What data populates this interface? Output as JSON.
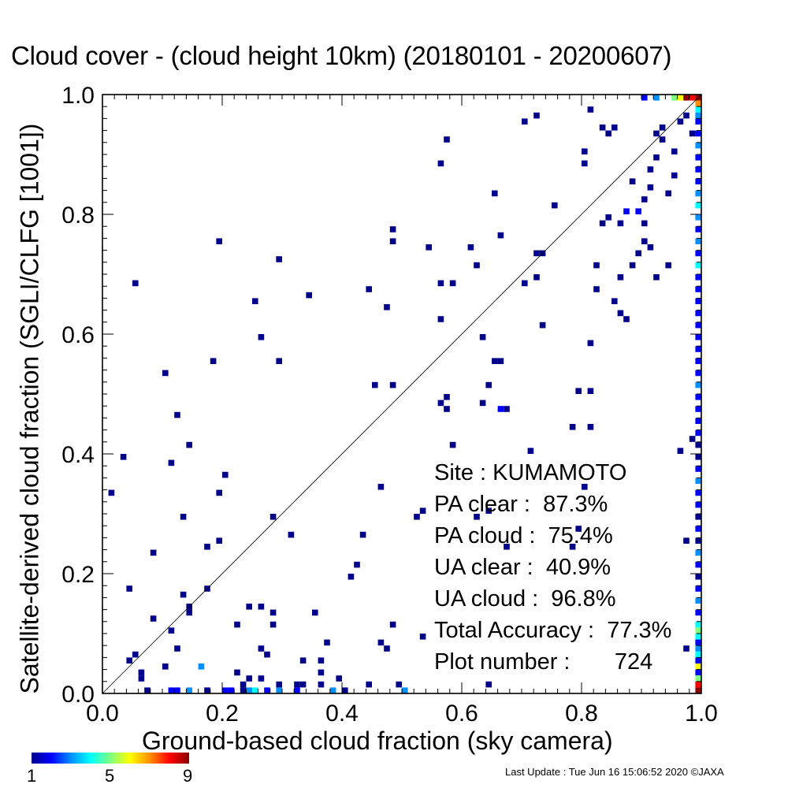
{
  "header": {
    "title": "Cloud cover - (cloud height 10km)  (20180101 - 20200607)"
  },
  "stats": {
    "site": "Site : KUMAMOTO",
    "pa_clear": "PA clear :  87.3%",
    "pa_cloud": "PA cloud :  75.4%",
    "ua_clear": "UA clear :  40.9%",
    "ua_cloud": "UA cloud :  96.8%",
    "total_accuracy": "Total Accuracy :  77.3%",
    "plot_number": "Plot number :       724"
  },
  "colorbar": {
    "tick_labels": [
      "1",
      "5",
      "9"
    ],
    "colors": [
      "#00008b",
      "#0000ff",
      "#0090ff",
      "#00ffff",
      "#80ff80",
      "#ffff00",
      "#ff9000",
      "#ff0000",
      "#8b0000"
    ]
  },
  "footer": {
    "update": "Last Update : Tue Jun 16 15:06:52 2020  ©JAXA"
  },
  "chart_data": {
    "type": "heatmap",
    "title": "Cloud cover - (cloud height 10km)  (20180101 - 20200607)",
    "xlabel": "Ground-based cloud fraction (sky camera)",
    "ylabel": "Satellite-derived cloud fraction (SGLI/CLFG [1001])",
    "xlim": [
      0,
      1
    ],
    "ylim": [
      0,
      1
    ],
    "x_ticks": [
      "0.0",
      "0.2",
      "0.4",
      "0.6",
      "0.8",
      "1.0"
    ],
    "y_ticks": [
      "0.0",
      "0.2",
      "0.4",
      "0.6",
      "0.8",
      "1.0"
    ],
    "bin_size": 0.01,
    "diagonal_line": true,
    "grid": false,
    "colorbar_range": [
      1,
      9
    ],
    "cells": [
      [
        0.01,
        0.33,
        1
      ],
      [
        0.03,
        0.39,
        1
      ],
      [
        0.04,
        0.17,
        1
      ],
      [
        0.04,
        0.05,
        1
      ],
      [
        0.05,
        0.06,
        1
      ],
      [
        0.05,
        0.68,
        1
      ],
      [
        0.06,
        0.02,
        1
      ],
      [
        0.06,
        0.03,
        1
      ],
      [
        0.07,
        0.0,
        1
      ],
      [
        0.08,
        0.23,
        1
      ],
      [
        0.08,
        0.12,
        1
      ],
      [
        0.1,
        0.53,
        1
      ],
      [
        0.1,
        0.04,
        1
      ],
      [
        0.11,
        0.38,
        1
      ],
      [
        0.11,
        0.1,
        1
      ],
      [
        0.11,
        0.0,
        2
      ],
      [
        0.12,
        0.46,
        1
      ],
      [
        0.12,
        0.07,
        1
      ],
      [
        0.12,
        0.0,
        2
      ],
      [
        0.13,
        0.29,
        1
      ],
      [
        0.13,
        0.16,
        1
      ],
      [
        0.14,
        0.41,
        1
      ],
      [
        0.14,
        0.14,
        1
      ],
      [
        0.14,
        0.13,
        1
      ],
      [
        0.14,
        0.0,
        3
      ],
      [
        0.16,
        0.04,
        3
      ],
      [
        0.17,
        0.24,
        1
      ],
      [
        0.17,
        0.17,
        1
      ],
      [
        0.17,
        0.0,
        1
      ],
      [
        0.18,
        0.55,
        1
      ],
      [
        0.19,
        0.75,
        1
      ],
      [
        0.19,
        0.33,
        1
      ],
      [
        0.19,
        0.25,
        1
      ],
      [
        0.2,
        0.36,
        1
      ],
      [
        0.2,
        0.0,
        2
      ],
      [
        0.21,
        0.0,
        2
      ],
      [
        0.22,
        0.11,
        1
      ],
      [
        0.22,
        0.03,
        1
      ],
      [
        0.23,
        0.01,
        1
      ],
      [
        0.23,
        0.0,
        1
      ],
      [
        0.24,
        0.14,
        1
      ],
      [
        0.24,
        0.02,
        1
      ],
      [
        0.24,
        0.0,
        3
      ],
      [
        0.25,
        0.65,
        1
      ],
      [
        0.25,
        0.0,
        4
      ],
      [
        0.26,
        0.59,
        1
      ],
      [
        0.26,
        0.14,
        1
      ],
      [
        0.26,
        0.07,
        1
      ],
      [
        0.26,
        0.02,
        1
      ],
      [
        0.27,
        0.06,
        1
      ],
      [
        0.27,
        0.0,
        2
      ],
      [
        0.28,
        0.29,
        1
      ],
      [
        0.28,
        0.13,
        1
      ],
      [
        0.28,
        0.11,
        1
      ],
      [
        0.29,
        0.72,
        1
      ],
      [
        0.29,
        0.55,
        1
      ],
      [
        0.29,
        0.01,
        1
      ],
      [
        0.29,
        0.0,
        3
      ],
      [
        0.31,
        0.26,
        1
      ],
      [
        0.32,
        0.01,
        1
      ],
      [
        0.32,
        0.0,
        2
      ],
      [
        0.33,
        0.05,
        1
      ],
      [
        0.33,
        0.01,
        1
      ],
      [
        0.34,
        0.66,
        1
      ],
      [
        0.35,
        0.13,
        1
      ],
      [
        0.36,
        0.05,
        1
      ],
      [
        0.36,
        0.03,
        1
      ],
      [
        0.36,
        0.01,
        1
      ],
      [
        0.37,
        0.08,
        1
      ],
      [
        0.38,
        0.0,
        3
      ],
      [
        0.39,
        0.02,
        1
      ],
      [
        0.4,
        0.0,
        1
      ],
      [
        0.41,
        0.19,
        1
      ],
      [
        0.42,
        0.21,
        1
      ],
      [
        0.43,
        0.26,
        1
      ],
      [
        0.44,
        0.67,
        1
      ],
      [
        0.44,
        0.01,
        1
      ],
      [
        0.45,
        0.51,
        1
      ],
      [
        0.46,
        0.34,
        1
      ],
      [
        0.46,
        0.08,
        1
      ],
      [
        0.47,
        0.64,
        1
      ],
      [
        0.47,
        0.07,
        1
      ],
      [
        0.48,
        0.77,
        1
      ],
      [
        0.48,
        0.75,
        1
      ],
      [
        0.48,
        0.51,
        1
      ],
      [
        0.48,
        0.11,
        1
      ],
      [
        0.49,
        0.01,
        1
      ],
      [
        0.5,
        0.0,
        3
      ],
      [
        0.52,
        0.29,
        1
      ],
      [
        0.53,
        0.3,
        1
      ],
      [
        0.53,
        0.09,
        1
      ],
      [
        0.54,
        0.74,
        1
      ],
      [
        0.56,
        0.88,
        1
      ],
      [
        0.56,
        0.68,
        1
      ],
      [
        0.56,
        0.62,
        1
      ],
      [
        0.56,
        0.48,
        1
      ],
      [
        0.57,
        0.92,
        1
      ],
      [
        0.57,
        0.49,
        1
      ],
      [
        0.57,
        0.47,
        1
      ],
      [
        0.58,
        0.68,
        1
      ],
      [
        0.58,
        0.41,
        1
      ],
      [
        0.61,
        0.74,
        1
      ],
      [
        0.62,
        0.71,
        1
      ],
      [
        0.62,
        0.29,
        1
      ],
      [
        0.63,
        0.59,
        1
      ],
      [
        0.63,
        0.48,
        1
      ],
      [
        0.64,
        0.51,
        1
      ],
      [
        0.64,
        0.3,
        1
      ],
      [
        0.64,
        0.01,
        1
      ],
      [
        0.65,
        0.83,
        1
      ],
      [
        0.65,
        0.55,
        1
      ],
      [
        0.66,
        0.76,
        1
      ],
      [
        0.66,
        0.55,
        1
      ],
      [
        0.66,
        0.47,
        2
      ],
      [
        0.67,
        0.47,
        1
      ],
      [
        0.67,
        0.24,
        1
      ],
      [
        0.7,
        0.95,
        1
      ],
      [
        0.7,
        0.68,
        1
      ],
      [
        0.71,
        0.4,
        1
      ],
      [
        0.72,
        0.96,
        1
      ],
      [
        0.72,
        0.73,
        1
      ],
      [
        0.72,
        0.69,
        1
      ],
      [
        0.73,
        0.73,
        1
      ],
      [
        0.73,
        0.61,
        1
      ],
      [
        0.75,
        0.81,
        1
      ],
      [
        0.78,
        0.44,
        1
      ],
      [
        0.78,
        0.24,
        1
      ],
      [
        0.79,
        0.5,
        1
      ],
      [
        0.79,
        0.27,
        1
      ],
      [
        0.8,
        0.9,
        1
      ],
      [
        0.8,
        0.88,
        1
      ],
      [
        0.8,
        0.34,
        1
      ],
      [
        0.81,
        0.97,
        1
      ],
      [
        0.81,
        0.5,
        1
      ],
      [
        0.81,
        0.44,
        1
      ],
      [
        0.81,
        0.58,
        1
      ],
      [
        0.82,
        0.71,
        1
      ],
      [
        0.82,
        0.67,
        1
      ],
      [
        0.83,
        0.94,
        1
      ],
      [
        0.83,
        0.78,
        1
      ],
      [
        0.84,
        0.93,
        1
      ],
      [
        0.84,
        0.79,
        1
      ],
      [
        0.85,
        0.94,
        1
      ],
      [
        0.85,
        0.65,
        1
      ],
      [
        0.86,
        0.63,
        1
      ],
      [
        0.86,
        0.69,
        1
      ],
      [
        0.86,
        0.78,
        1
      ],
      [
        0.87,
        0.62,
        1
      ],
      [
        0.87,
        0.8,
        2
      ],
      [
        0.88,
        0.85,
        1
      ],
      [
        0.88,
        0.71,
        1
      ],
      [
        0.89,
        0.73,
        1
      ],
      [
        0.89,
        0.8,
        2
      ],
      [
        0.9,
        0.82,
        1
      ],
      [
        0.9,
        0.78,
        1
      ],
      [
        0.9,
        0.75,
        1
      ],
      [
        0.91,
        0.87,
        1
      ],
      [
        0.91,
        0.84,
        1
      ],
      [
        0.91,
        0.74,
        1
      ],
      [
        0.92,
        0.93,
        1
      ],
      [
        0.92,
        0.89,
        1
      ],
      [
        0.92,
        0.69,
        1
      ],
      [
        0.93,
        0.94,
        1
      ],
      [
        0.93,
        0.92,
        1
      ],
      [
        0.94,
        0.83,
        1
      ],
      [
        0.94,
        0.71,
        1
      ],
      [
        0.95,
        0.86,
        1
      ],
      [
        0.95,
        0.9,
        1
      ],
      [
        0.96,
        0.95,
        1
      ],
      [
        0.96,
        0.4,
        1
      ],
      [
        0.97,
        0.96,
        1
      ],
      [
        0.97,
        0.25,
        1
      ],
      [
        0.97,
        0.07,
        1
      ],
      [
        0.98,
        0.93,
        1
      ],
      [
        0.98,
        0.42,
        1
      ],
      [
        0.9,
        0.99,
        2
      ],
      [
        0.92,
        0.99,
        3
      ],
      [
        0.95,
        0.99,
        5
      ],
      [
        0.96,
        0.99,
        6
      ],
      [
        0.97,
        0.99,
        9
      ],
      [
        0.98,
        0.99,
        8
      ],
      [
        0.99,
        0.99,
        9
      ],
      [
        0.99,
        0.98,
        7
      ],
      [
        0.99,
        0.97,
        4
      ],
      [
        0.99,
        0.96,
        3
      ],
      [
        0.99,
        0.95,
        2
      ],
      [
        0.99,
        0.93,
        2
      ],
      [
        0.99,
        0.91,
        3
      ],
      [
        0.99,
        0.89,
        2
      ],
      [
        0.99,
        0.87,
        2
      ],
      [
        0.99,
        0.85,
        2
      ],
      [
        0.99,
        0.83,
        3
      ],
      [
        0.99,
        0.81,
        4
      ],
      [
        0.99,
        0.79,
        3
      ],
      [
        0.99,
        0.77,
        2
      ],
      [
        0.99,
        0.75,
        3
      ],
      [
        0.99,
        0.73,
        2
      ],
      [
        0.99,
        0.71,
        4
      ],
      [
        0.99,
        0.69,
        2
      ],
      [
        0.99,
        0.67,
        2
      ],
      [
        0.99,
        0.65,
        2
      ],
      [
        0.99,
        0.63,
        2
      ],
      [
        0.99,
        0.61,
        2
      ],
      [
        0.99,
        0.59,
        2
      ],
      [
        0.99,
        0.57,
        2
      ],
      [
        0.99,
        0.55,
        2
      ],
      [
        0.99,
        0.53,
        2
      ],
      [
        0.99,
        0.51,
        3
      ],
      [
        0.99,
        0.49,
        2
      ],
      [
        0.99,
        0.47,
        2
      ],
      [
        0.99,
        0.45,
        2
      ],
      [
        0.99,
        0.43,
        2
      ],
      [
        0.99,
        0.41,
        1
      ],
      [
        0.99,
        0.39,
        1
      ],
      [
        0.99,
        0.37,
        2
      ],
      [
        0.99,
        0.35,
        3
      ],
      [
        0.99,
        0.33,
        2
      ],
      [
        0.99,
        0.31,
        2
      ],
      [
        0.99,
        0.29,
        1
      ],
      [
        0.99,
        0.27,
        2
      ],
      [
        0.99,
        0.25,
        1
      ],
      [
        0.99,
        0.23,
        3
      ],
      [
        0.99,
        0.21,
        2
      ],
      [
        0.99,
        0.19,
        1
      ],
      [
        0.99,
        0.17,
        2
      ],
      [
        0.99,
        0.15,
        3
      ],
      [
        0.99,
        0.13,
        2
      ],
      [
        0.99,
        0.11,
        4
      ],
      [
        0.99,
        0.1,
        5
      ],
      [
        0.99,
        0.09,
        4
      ],
      [
        0.99,
        0.08,
        2
      ],
      [
        0.99,
        0.07,
        3
      ],
      [
        0.99,
        0.06,
        4
      ],
      [
        0.99,
        0.05,
        2
      ],
      [
        0.99,
        0.04,
        6
      ],
      [
        0.99,
        0.03,
        2
      ],
      [
        0.99,
        0.02,
        5
      ],
      [
        0.99,
        0.01,
        8
      ],
      [
        0.99,
        0.0,
        9
      ]
    ]
  }
}
